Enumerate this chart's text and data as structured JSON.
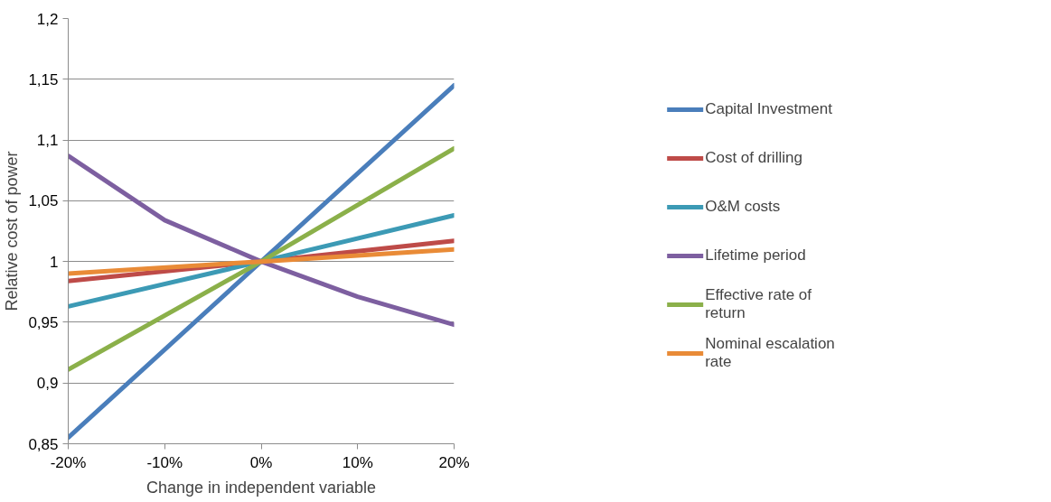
{
  "chart_data": {
    "type": "line",
    "xlabel": "Change in independent variable",
    "ylabel": "Relative cost of power",
    "x": [
      -20,
      0,
      20
    ],
    "xlim": [
      -20,
      20
    ],
    "xticks": [
      {
        "value": -20,
        "label": "-20%"
      },
      {
        "value": -10,
        "label": "-10%"
      },
      {
        "value": 0,
        "label": "0%"
      },
      {
        "value": 10,
        "label": "10%"
      },
      {
        "value": 20,
        "label": "20%"
      }
    ],
    "ylim": [
      0.85,
      1.2
    ],
    "yticks": [
      {
        "value": 0.85,
        "label": "0,85"
      },
      {
        "value": 0.9,
        "label": "0,9"
      },
      {
        "value": 0.95,
        "label": "0,95"
      },
      {
        "value": 1,
        "label": "1"
      },
      {
        "value": 1.05,
        "label": "1,05"
      },
      {
        "value": 1.1,
        "label": "1,1"
      },
      {
        "value": 1.15,
        "label": "1,15"
      },
      {
        "value": 1.2,
        "label": "1,2"
      }
    ],
    "grid": "y",
    "legend": "right",
    "marker": "none",
    "line_style": "solid",
    "series": [
      {
        "name": "Capital Investment",
        "color": "#4a7ebb",
        "values": [
          0.855,
          1,
          1.145
        ]
      },
      {
        "name": "Cost of drilling",
        "color": "#be4b48",
        "values": [
          0.984,
          1,
          1.017
        ]
      },
      {
        "name": "O&M costs",
        "color": "#3c9ab5",
        "values": [
          0.963,
          1,
          1.038
        ]
      },
      {
        "name": "Lifetime period",
        "color": "#7d5fa0",
        "x": [
          -20,
          -10,
          0,
          10,
          20
        ],
        "values": [
          1.087,
          1.034,
          1,
          0.971,
          0.948
        ]
      },
      {
        "name": "Effective rate of return",
        "color": "#8bb04a",
        "values": [
          0.911,
          1,
          1.093
        ]
      },
      {
        "name": "Nominal escalation rate",
        "color": "#e98b37",
        "values": [
          0.99,
          1,
          1.01
        ]
      }
    ]
  }
}
